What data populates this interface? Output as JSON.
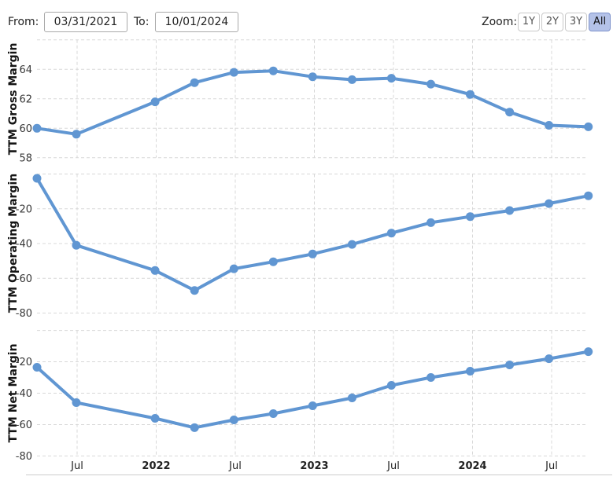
{
  "toolbar": {
    "from_label": "From:",
    "from_value": "03/31/2021",
    "to_label": "To:",
    "to_value": "10/01/2024",
    "zoom_label": "Zoom:",
    "zoom_buttons": [
      {
        "label": "1Y",
        "active": false
      },
      {
        "label": "2Y",
        "active": false
      },
      {
        "label": "3Y",
        "active": false
      },
      {
        "label": "All",
        "active": true
      }
    ]
  },
  "colors": {
    "series_line": "#6096d2",
    "grid_line": "#d8d8d8",
    "axis_text": "#383838",
    "zoom_active_bg": "#b4c2e8",
    "zoom_active_border": "#7f93cb",
    "bottom_rule": "#cccccc"
  },
  "x_axis": {
    "range_start": "03/31/2021",
    "range_end": "10/01/2024",
    "labels": [
      {
        "text": "Jul",
        "bold": false
      },
      {
        "text": "2022",
        "bold": true
      },
      {
        "text": "Jul",
        "bold": false
      },
      {
        "text": "2023",
        "bold": true
      },
      {
        "text": "Jul",
        "bold": false
      },
      {
        "text": "2024",
        "bold": true
      },
      {
        "text": "Jul",
        "bold": false
      }
    ]
  },
  "chart_data": [
    {
      "type": "line",
      "title": "TTM Gross Margin",
      "x_unit": "quarters since 03/31/2021 (one quarter missing after index 1)",
      "x": [
        0,
        1,
        3,
        4,
        5,
        6,
        7,
        8,
        9,
        10,
        11,
        12,
        13,
        14
      ],
      "values": [
        60.0,
        59.6,
        61.8,
        63.1,
        63.8,
        63.9,
        63.5,
        63.3,
        63.4,
        63.0,
        62.3,
        61.1,
        60.2,
        60.1
      ],
      "yticks": [
        58,
        60,
        62,
        64
      ],
      "ylim": [
        57.8,
        66
      ],
      "grid": true,
      "legend": "none"
    },
    {
      "type": "line",
      "title": "TTM Operating Margin",
      "x_unit": "quarters since 03/31/2021 (one quarter missing after index 1)",
      "x": [
        0,
        1,
        3,
        4,
        5,
        6,
        7,
        8,
        9,
        10,
        11,
        12,
        13,
        14
      ],
      "values": [
        -2.5,
        -41,
        -55.5,
        -67,
        -54.5,
        -50.5,
        -46,
        -40.5,
        -34,
        -28,
        -24.5,
        -21,
        -17,
        -12.5
      ],
      "yticks": [
        -80,
        -60,
        -40,
        -20
      ],
      "ylim": [
        -81,
        0
      ],
      "grid": true,
      "legend": "none"
    },
    {
      "type": "line",
      "title": "TTM Net Margin",
      "x_unit": "quarters since 03/31/2021 (one quarter missing after index 1)",
      "x": [
        0,
        1,
        3,
        4,
        5,
        6,
        7,
        8,
        9,
        10,
        11,
        12,
        13,
        14
      ],
      "values": [
        -23.5,
        -46,
        -56,
        -62,
        -57,
        -53,
        -48,
        -43,
        -35,
        -30,
        -26,
        -22,
        -18,
        -13.5
      ],
      "yticks": [
        -80,
        -60,
        -40,
        -20
      ],
      "ylim": [
        -80.5,
        0
      ],
      "grid": true,
      "legend": "none"
    }
  ]
}
